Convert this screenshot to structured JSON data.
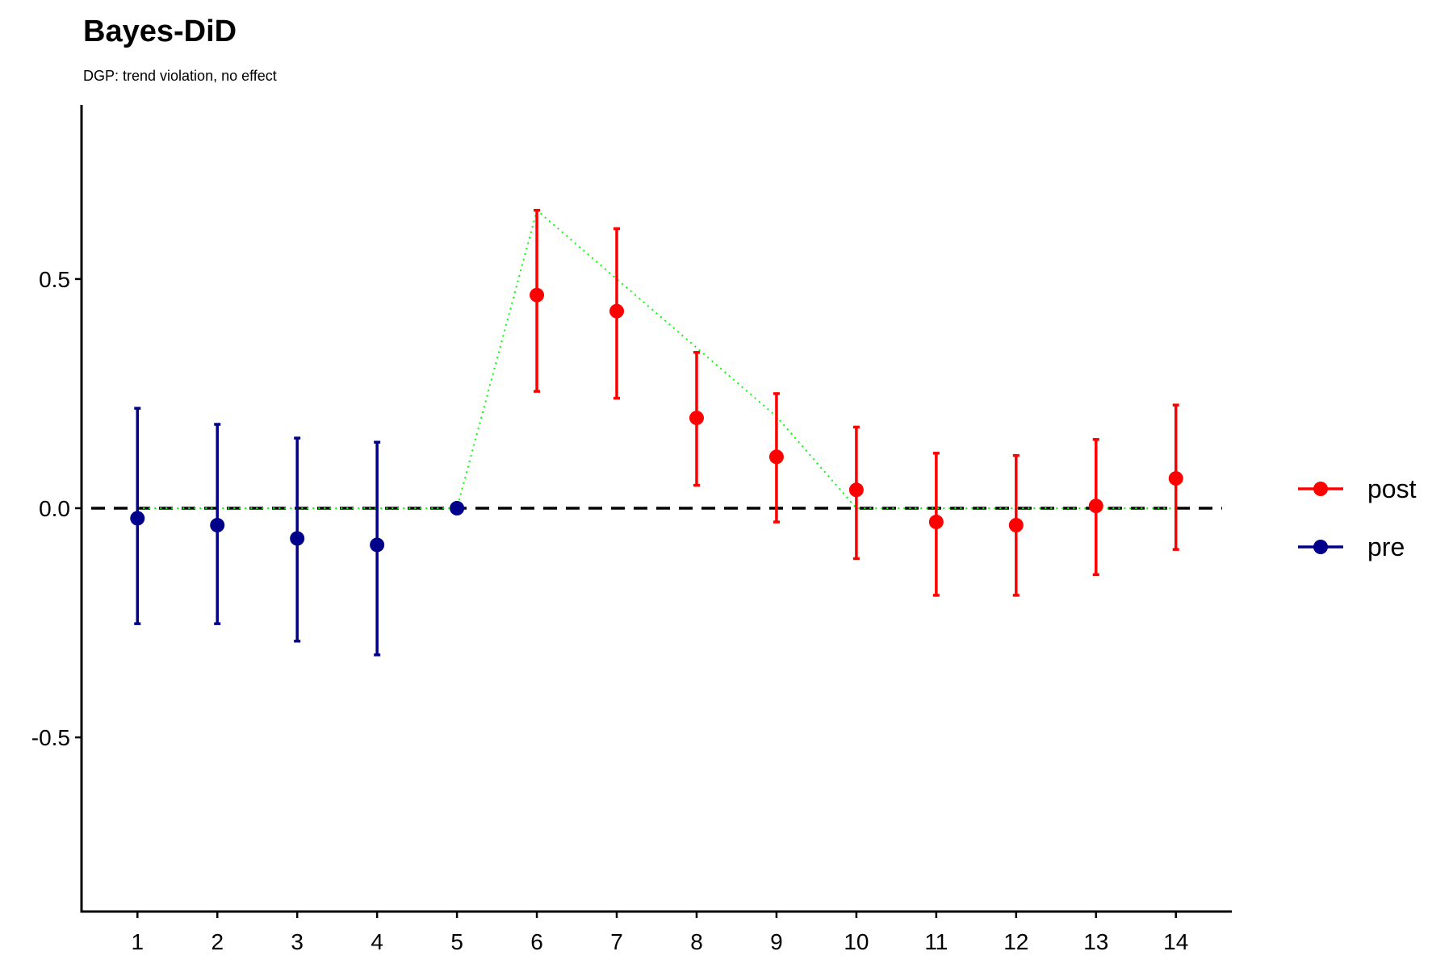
{
  "chart_data": {
    "type": "scatter",
    "title": "Bayes-DiD",
    "subtitle": "DGP: trend violation, no effect",
    "xlabel": "",
    "ylabel": "",
    "x_ticks": [
      1,
      2,
      3,
      4,
      5,
      6,
      7,
      8,
      9,
      10,
      11,
      12,
      13,
      14
    ],
    "y_ticks": [
      -0.5,
      0.0,
      0.5
    ],
    "y_tick_labels": [
      "-0.5",
      "0.0",
      "0.5"
    ],
    "xlim": [
      0.3,
      14.7
    ],
    "ylim": [
      -0.88,
      0.88
    ],
    "grid": false,
    "legend_position": "right",
    "reference_line": {
      "y": 0,
      "style": "dashed",
      "color": "#000000"
    },
    "series": [
      {
        "name": "post",
        "color": "#ff0000",
        "points": [
          {
            "x": 6,
            "y": 0.465,
            "lo": 0.255,
            "hi": 0.65
          },
          {
            "x": 7,
            "y": 0.43,
            "lo": 0.24,
            "hi": 0.61
          },
          {
            "x": 8,
            "y": 0.197,
            "lo": 0.05,
            "hi": 0.34
          },
          {
            "x": 9,
            "y": 0.112,
            "lo": -0.03,
            "hi": 0.25
          },
          {
            "x": 10,
            "y": 0.04,
            "lo": -0.11,
            "hi": 0.177
          },
          {
            "x": 11,
            "y": -0.03,
            "lo": -0.19,
            "hi": 0.12
          },
          {
            "x": 12,
            "y": -0.037,
            "lo": -0.19,
            "hi": 0.115
          },
          {
            "x": 13,
            "y": 0.005,
            "lo": -0.145,
            "hi": 0.15
          },
          {
            "x": 14,
            "y": 0.065,
            "lo": -0.09,
            "hi": 0.225
          }
        ]
      },
      {
        "name": "pre",
        "color": "#00008b",
        "points": [
          {
            "x": 1,
            "y": -0.022,
            "lo": -0.252,
            "hi": 0.218
          },
          {
            "x": 2,
            "y": -0.037,
            "lo": -0.252,
            "hi": 0.183
          },
          {
            "x": 3,
            "y": -0.066,
            "lo": -0.29,
            "hi": 0.153
          },
          {
            "x": 4,
            "y": -0.08,
            "lo": -0.32,
            "hi": 0.144
          },
          {
            "x": 5,
            "y": 0.0,
            "lo": 0.0,
            "hi": 0.0
          }
        ]
      }
    ],
    "true_effect": {
      "color": "#00ff00",
      "style": "dotted",
      "x": [
        1,
        2,
        3,
        4,
        5,
        6,
        7,
        8,
        9,
        10,
        11,
        12,
        13,
        14
      ],
      "y": [
        0,
        0,
        0,
        0,
        0,
        0.65,
        0.5,
        0.35,
        0.2,
        0,
        0,
        0,
        0,
        0
      ]
    }
  }
}
